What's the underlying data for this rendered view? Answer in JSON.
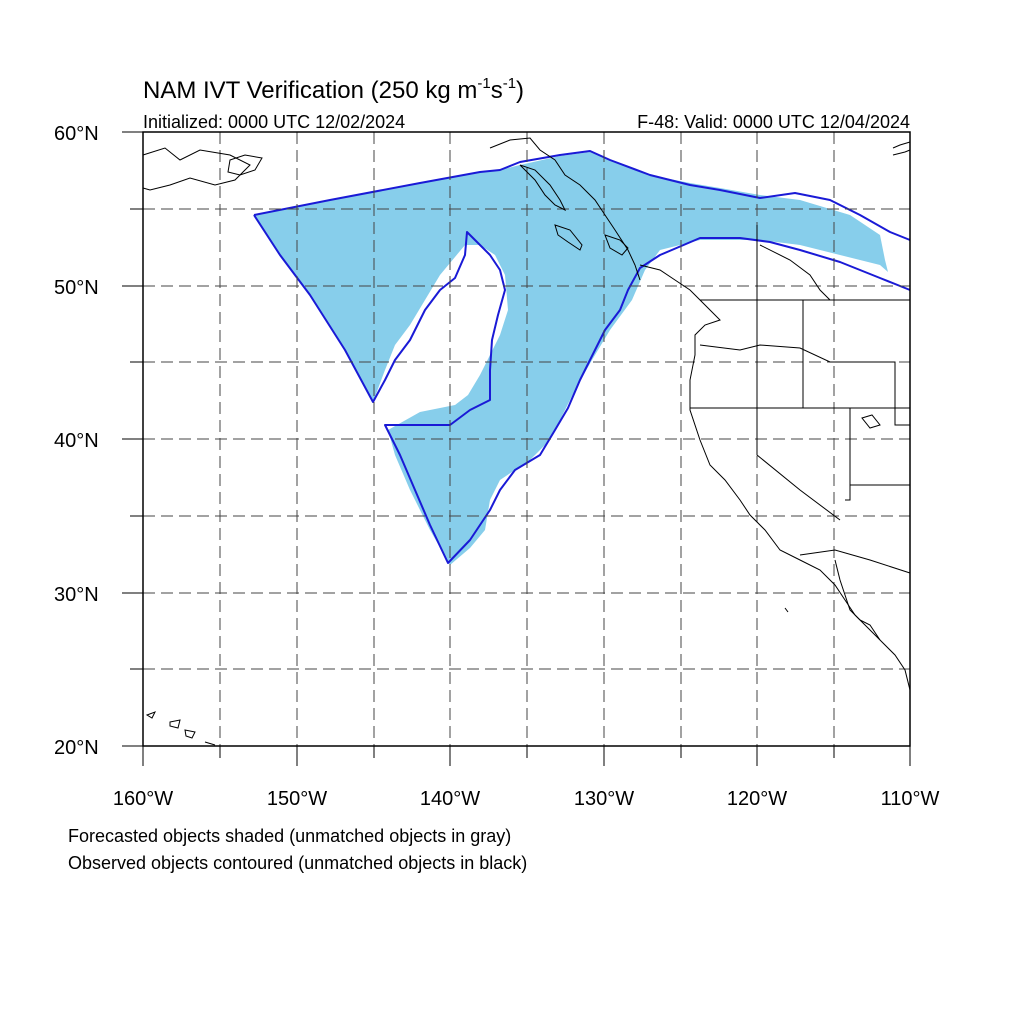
{
  "title": {
    "main": "NAM IVT Verification (250 kg m",
    "sup1": "-1",
    "mid": "s",
    "sup2": "-1",
    "end": ")"
  },
  "subtitle_left": "Initialized: 0000 UTC 12/02/2024",
  "subtitle_right": "F-48: Valid: 0000 UTC 12/04/2024",
  "lat_labels": [
    "60°N",
    "50°N",
    "40°N",
    "30°N",
    "20°N"
  ],
  "lon_labels": [
    "160°W",
    "150°W",
    "140°W",
    "130°W",
    "120°W",
    "110°W"
  ],
  "notes": [
    "Forecasted objects shaded (unmatched objects in gray)",
    "Observed objects contoured (unmatched objects in black)"
  ],
  "colors": {
    "forecast_fill": "#87ceeb",
    "observed_contour": "#1a1ad6",
    "grid": "#444444",
    "coastline": "#000000"
  },
  "map_extent": {
    "lon": [
      -160,
      -110
    ],
    "lat": [
      20,
      60
    ]
  }
}
